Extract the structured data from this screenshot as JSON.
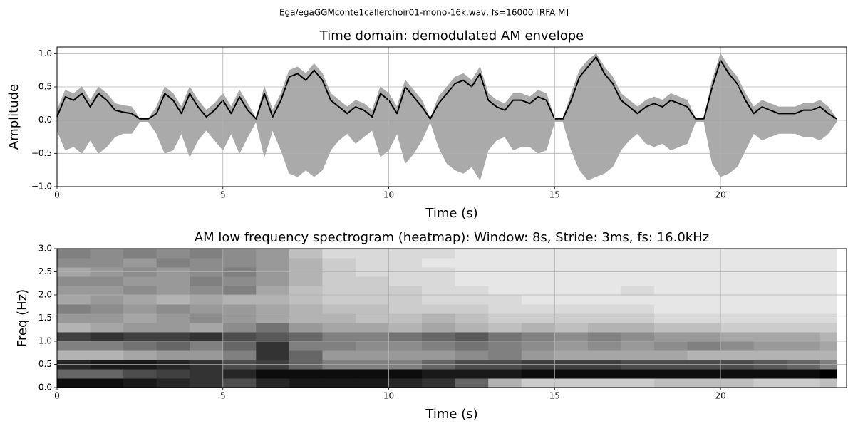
{
  "suptitle": "Ega/egaGGMconte1callerchoir01-mono-16k.wav, fs=16000 [RFA M]",
  "chart_data": [
    {
      "type": "line",
      "title": "Time domain: demodulated AM envelope",
      "xlabel": "Time (s)",
      "ylabel": "Amplitude",
      "x": [
        0,
        0.25,
        0.5,
        0.75,
        1,
        1.25,
        1.5,
        1.75,
        2,
        2.25,
        2.5,
        2.75,
        3,
        3.25,
        3.5,
        3.75,
        4,
        4.25,
        4.5,
        4.75,
        5,
        5.25,
        5.5,
        5.75,
        6,
        6.25,
        6.5,
        6.75,
        7,
        7.25,
        7.5,
        7.75,
        8,
        8.25,
        8.5,
        8.75,
        9,
        9.25,
        9.5,
        9.75,
        10,
        10.25,
        10.5,
        10.75,
        11,
        11.25,
        11.5,
        11.75,
        12,
        12.25,
        12.5,
        12.75,
        13,
        13.25,
        13.5,
        13.75,
        14,
        14.25,
        14.5,
        14.75,
        15,
        15.25,
        15.5,
        15.75,
        16,
        16.25,
        16.5,
        16.75,
        17,
        17.25,
        17.5,
        17.75,
        18,
        18.25,
        18.5,
        18.75,
        19,
        19.25,
        19.5,
        19.75,
        20,
        20.25,
        20.5,
        20.75,
        21,
        21.25,
        21.5,
        21.75,
        22,
        22.25,
        22.5,
        22.75,
        23,
        23.25,
        23.5
      ],
      "series": [
        {
          "kind": "area",
          "color": "#aaaaaa",
          "values": [
            0.15,
            0.45,
            0.4,
            0.5,
            0.3,
            0.5,
            0.4,
            0.25,
            0.22,
            0.2,
            0.02,
            0.02,
            0.2,
            0.5,
            0.4,
            0.2,
            0.5,
            0.3,
            0.15,
            0.25,
            0.4,
            0.2,
            0.45,
            0.25,
            0.02,
            0.5,
            0.15,
            0.4,
            0.75,
            0.8,
            0.7,
            0.85,
            0.7,
            0.4,
            0.3,
            0.2,
            0.3,
            0.25,
            0.15,
            0.5,
            0.4,
            0.2,
            0.6,
            0.45,
            0.3,
            0.02,
            0.35,
            0.5,
            0.65,
            0.7,
            0.6,
            0.8,
            0.4,
            0.3,
            0.25,
            0.4,
            0.4,
            0.35,
            0.45,
            0.4,
            0.02,
            0.02,
            0.4,
            0.75,
            0.9,
            1.0,
            0.8,
            0.65,
            0.4,
            0.3,
            0.2,
            0.3,
            0.35,
            0.3,
            0.4,
            0.35,
            0.3,
            0.02,
            0.02,
            0.6,
            1.0,
            0.8,
            0.65,
            0.4,
            0.2,
            0.3,
            0.25,
            0.2,
            0.2,
            0.2,
            0.25,
            0.25,
            0.3,
            0.2,
            0.02
          ]
        },
        {
          "kind": "area",
          "color": "#aaaaaa",
          "values": [
            -0.15,
            -0.45,
            -0.4,
            -0.5,
            -0.3,
            -0.5,
            -0.4,
            -0.25,
            -0.2,
            -0.2,
            -0.02,
            -0.02,
            -0.2,
            -0.5,
            -0.45,
            -0.2,
            -0.55,
            -0.3,
            -0.15,
            -0.3,
            -0.45,
            -0.2,
            -0.5,
            -0.25,
            -0.02,
            -0.55,
            -0.15,
            -0.45,
            -0.8,
            -0.85,
            -0.75,
            -0.85,
            -0.75,
            -0.45,
            -0.3,
            -0.2,
            -0.35,
            -0.25,
            -0.15,
            -0.55,
            -0.45,
            -0.2,
            -0.65,
            -0.5,
            -0.3,
            -0.02,
            -0.4,
            -0.65,
            -0.75,
            -0.8,
            -0.7,
            -0.9,
            -0.45,
            -0.3,
            -0.25,
            -0.45,
            -0.4,
            -0.4,
            -0.5,
            -0.45,
            -0.02,
            -0.02,
            -0.45,
            -0.75,
            -0.9,
            -0.85,
            -0.8,
            -0.7,
            -0.45,
            -0.3,
            -0.2,
            -0.35,
            -0.4,
            -0.35,
            -0.45,
            -0.4,
            -0.35,
            -0.02,
            -0.02,
            -0.65,
            -0.85,
            -0.8,
            -0.7,
            -0.45,
            -0.2,
            -0.3,
            -0.25,
            -0.2,
            -0.2,
            -0.2,
            -0.25,
            -0.25,
            -0.3,
            -0.2,
            -0.02
          ]
        },
        {
          "kind": "line",
          "color": "#000000",
          "values": [
            0.05,
            0.35,
            0.3,
            0.4,
            0.2,
            0.4,
            0.3,
            0.15,
            0.12,
            0.1,
            0.02,
            0.02,
            0.1,
            0.4,
            0.3,
            0.1,
            0.4,
            0.2,
            0.05,
            0.15,
            0.3,
            0.1,
            0.35,
            0.15,
            0.02,
            0.4,
            0.05,
            0.3,
            0.65,
            0.7,
            0.6,
            0.75,
            0.6,
            0.3,
            0.2,
            0.1,
            0.2,
            0.15,
            0.05,
            0.4,
            0.3,
            0.1,
            0.5,
            0.35,
            0.2,
            0.02,
            0.25,
            0.4,
            0.55,
            0.6,
            0.5,
            0.7,
            0.3,
            0.2,
            0.15,
            0.3,
            0.3,
            0.25,
            0.35,
            0.3,
            0.02,
            0.02,
            0.3,
            0.65,
            0.8,
            0.95,
            0.7,
            0.55,
            0.3,
            0.2,
            0.1,
            0.2,
            0.25,
            0.2,
            0.3,
            0.25,
            0.2,
            0.02,
            0.02,
            0.5,
            0.9,
            0.7,
            0.55,
            0.3,
            0.1,
            0.2,
            0.15,
            0.1,
            0.1,
            0.1,
            0.15,
            0.15,
            0.2,
            0.1,
            0.02
          ]
        }
      ],
      "xlim": [
        0,
        23.8
      ],
      "ylim": [
        -1.0,
        1.1
      ],
      "xticks": [
        0,
        5,
        10,
        15,
        20
      ],
      "yticks": [
        {
          "value": -1.0,
          "label": "−1.0"
        },
        {
          "value": -0.5,
          "label": "−0.5"
        },
        {
          "value": 0,
          "label": "0.0"
        },
        {
          "value": 0.5,
          "label": "0.5"
        },
        {
          "value": 1.0,
          "label": "1.0"
        }
      ],
      "grid": true
    },
    {
      "type": "heatmap",
      "title": "AM low frequency spectrogram (heatmap): Window: 8s, Stride: 3ms, fs: 16.0kHz",
      "xlabel": "Time (s)",
      "ylabel": "Freq (Hz)",
      "xbins": [
        0,
        1,
        2,
        3,
        4,
        5,
        6,
        7,
        8,
        9,
        10,
        11,
        12,
        13,
        14,
        15,
        16,
        17,
        18,
        19,
        20,
        21,
        22,
        23,
        23.5
      ],
      "ybins": [
        0,
        0.2,
        0.4,
        0.6,
        0.8,
        1.0,
        1.2,
        1.4,
        1.6,
        1.8,
        2.0,
        2.2,
        2.4,
        2.6,
        2.8,
        3.0
      ],
      "z": [
        [
          0.95,
          0.95,
          0.9,
          0.85,
          0.8,
          0.7,
          0.85,
          0.9,
          0.9,
          0.9,
          0.85,
          0.8,
          0.6,
          0.3,
          0.2,
          0.2,
          0.2,
          0.2,
          0.25,
          0.25,
          0.25,
          0.2,
          0.2,
          0.25
        ],
        [
          0.6,
          0.6,
          0.7,
          0.75,
          0.8,
          0.85,
          0.95,
          0.95,
          0.95,
          0.95,
          0.95,
          0.9,
          0.9,
          0.9,
          0.95,
          0.95,
          0.95,
          0.95,
          0.95,
          0.95,
          0.95,
          0.95,
          0.95,
          1.0
        ],
        [
          0.85,
          0.9,
          0.9,
          0.85,
          0.8,
          0.7,
          0.75,
          0.6,
          0.5,
          0.5,
          0.5,
          0.6,
          0.7,
          0.7,
          0.75,
          0.75,
          0.75,
          0.7,
          0.7,
          0.7,
          0.7,
          0.65,
          0.6,
          0.5
        ],
        [
          0.3,
          0.3,
          0.35,
          0.4,
          0.4,
          0.5,
          0.8,
          0.6,
          0.4,
          0.4,
          0.4,
          0.4,
          0.45,
          0.5,
          0.4,
          0.35,
          0.35,
          0.35,
          0.35,
          0.3,
          0.3,
          0.3,
          0.3,
          0.3
        ],
        [
          0.5,
          0.5,
          0.55,
          0.6,
          0.5,
          0.6,
          0.8,
          0.5,
          0.5,
          0.45,
          0.45,
          0.5,
          0.55,
          0.5,
          0.45,
          0.4,
          0.45,
          0.4,
          0.45,
          0.5,
          0.45,
          0.4,
          0.4,
          0.35
        ],
        [
          0.75,
          0.8,
          0.75,
          0.75,
          0.8,
          0.7,
          0.65,
          0.6,
          0.5,
          0.5,
          0.55,
          0.6,
          0.65,
          0.55,
          0.5,
          0.45,
          0.5,
          0.45,
          0.4,
          0.4,
          0.35,
          0.35,
          0.35,
          0.3
        ],
        [
          0.3,
          0.35,
          0.4,
          0.4,
          0.35,
          0.45,
          0.55,
          0.4,
          0.35,
          0.35,
          0.3,
          0.35,
          0.3,
          0.25,
          0.3,
          0.25,
          0.3,
          0.3,
          0.25,
          0.25,
          0.2,
          0.2,
          0.2,
          0.2
        ],
        [
          0.4,
          0.4,
          0.35,
          0.4,
          0.45,
          0.4,
          0.35,
          0.3,
          0.3,
          0.25,
          0.25,
          0.3,
          0.25,
          0.2,
          0.2,
          0.2,
          0.2,
          0.2,
          0.15,
          0.15,
          0.15,
          0.15,
          0.15,
          0.15
        ],
        [
          0.5,
          0.45,
          0.4,
          0.45,
          0.4,
          0.4,
          0.35,
          0.3,
          0.25,
          0.25,
          0.2,
          0.2,
          0.2,
          0.15,
          0.15,
          0.15,
          0.15,
          0.15,
          0.1,
          0.1,
          0.1,
          0.1,
          0.1,
          0.1
        ],
        [
          0.35,
          0.4,
          0.35,
          0.3,
          0.35,
          0.3,
          0.3,
          0.25,
          0.2,
          0.2,
          0.2,
          0.15,
          0.15,
          0.15,
          0.1,
          0.1,
          0.1,
          0.1,
          0.1,
          0.1,
          0.1,
          0.1,
          0.1,
          0.1
        ],
        [
          0.4,
          0.4,
          0.45,
          0.4,
          0.45,
          0.5,
          0.35,
          0.25,
          0.2,
          0.2,
          0.2,
          0.15,
          0.15,
          0.1,
          0.1,
          0.1,
          0.1,
          0.15,
          0.1,
          0.1,
          0.1,
          0.1,
          0.1,
          0.1
        ],
        [
          0.45,
          0.45,
          0.4,
          0.4,
          0.5,
          0.45,
          0.4,
          0.3,
          0.2,
          0.2,
          0.15,
          0.15,
          0.1,
          0.1,
          0.1,
          0.1,
          0.1,
          0.1,
          0.1,
          0.1,
          0.1,
          0.1,
          0.1,
          0.1
        ],
        [
          0.35,
          0.4,
          0.45,
          0.4,
          0.45,
          0.5,
          0.4,
          0.3,
          0.2,
          0.15,
          0.15,
          0.15,
          0.1,
          0.1,
          0.1,
          0.1,
          0.1,
          0.1,
          0.1,
          0.1,
          0.1,
          0.1,
          0.1,
          0.1
        ],
        [
          0.45,
          0.45,
          0.4,
          0.5,
          0.45,
          0.45,
          0.4,
          0.3,
          0.2,
          0.15,
          0.15,
          0.1,
          0.1,
          0.1,
          0.1,
          0.1,
          0.1,
          0.1,
          0.1,
          0.1,
          0.1,
          0.1,
          0.1,
          0.1
        ],
        [
          0.5,
          0.45,
          0.5,
          0.45,
          0.5,
          0.45,
          0.4,
          0.25,
          0.15,
          0.15,
          0.15,
          0.15,
          0.1,
          0.1,
          0.1,
          0.1,
          0.1,
          0.1,
          0.1,
          0.1,
          0.1,
          0.1,
          0.1,
          0.1
        ]
      ],
      "zlim": [
        0,
        1
      ],
      "colormap": "gray_r",
      "xlim": [
        0,
        23.8
      ],
      "ylim": [
        0,
        3.0
      ],
      "xticks": [
        0,
        5,
        10,
        15,
        20
      ],
      "yticks": [
        {
          "value": 0,
          "label": "0.0"
        },
        {
          "value": 0.5,
          "label": "0.5"
        },
        {
          "value": 1.0,
          "label": "1.0"
        },
        {
          "value": 1.5,
          "label": "1.5"
        },
        {
          "value": 2.0,
          "label": "2.0"
        },
        {
          "value": 2.5,
          "label": "2.5"
        },
        {
          "value": 3.0,
          "label": "3.0"
        }
      ],
      "grid": true
    }
  ]
}
